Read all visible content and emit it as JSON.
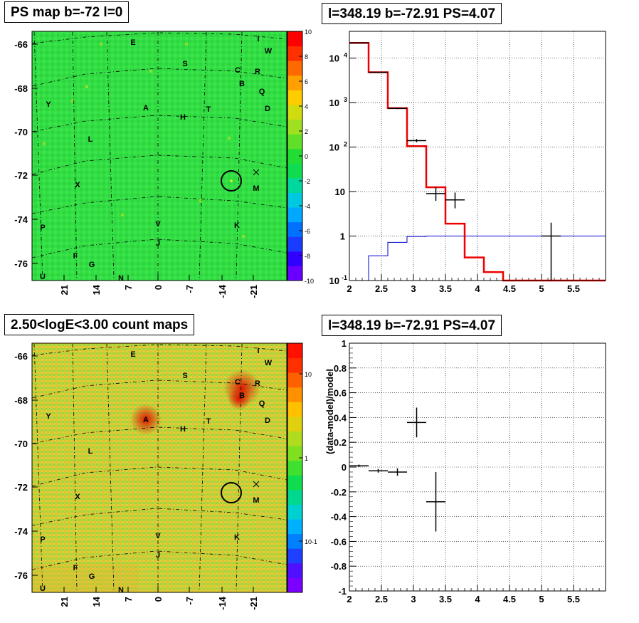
{
  "panels": {
    "ps_map": {
      "title": "PS map b=-72 l=0",
      "y_ticks": [
        "-66",
        "-68",
        "-70",
        "-72",
        "-74",
        "-76"
      ],
      "x_ticks": [
        "21",
        "14",
        "7",
        "0",
        "-7",
        "-14",
        "-21"
      ],
      "colorbar_ticks": [
        "10",
        "8",
        "6",
        "4",
        "2",
        "0",
        "-2",
        "-4",
        "-6",
        "-8",
        "-10"
      ],
      "markers": [
        "E",
        "S",
        "C",
        "R",
        "B",
        "Q",
        "D",
        "I",
        "W",
        "Y",
        "A",
        "H",
        "T",
        "L",
        "X",
        "M",
        "P",
        "V",
        "K",
        "J",
        "F",
        "G",
        "U",
        "N"
      ],
      "colors": {
        "background": "#33dd44",
        "hot": "#ff2200",
        "grid": "#000000"
      }
    },
    "count_map": {
      "title": "2.50<logE<3.00 count maps",
      "y_ticks": [
        "-66",
        "-68",
        "-70",
        "-72",
        "-74",
        "-76"
      ],
      "x_ticks": [
        "21",
        "14",
        "7",
        "0",
        "-7",
        "-14",
        "-21"
      ],
      "colorbar_ticks": [
        "10",
        "1",
        "10-1"
      ],
      "markers": [
        "E",
        "S",
        "C",
        "R",
        "B",
        "Q",
        "D",
        "I",
        "W",
        "Y",
        "A",
        "H",
        "T",
        "L",
        "X",
        "M",
        "P",
        "V",
        "K",
        "J",
        "F",
        "G",
        "U",
        "N"
      ],
      "colors": {
        "background": "#c8d040",
        "hot": "#dd2000"
      }
    },
    "spectrum": {
      "title": "l=348.19 b=-72.91 PS=4.07"
    },
    "residual": {
      "title": "l=348.19 b=-72.91 PS=4.07"
    }
  },
  "chart_data": [
    {
      "type": "heatmap",
      "title": "PS map b=-72 l=0",
      "ylabel_ticks": [
        -66,
        -68,
        -70,
        -72,
        -74,
        -76
      ],
      "xlabel_ticks": [
        21,
        14,
        7,
        0,
        -7,
        -14,
        -21
      ],
      "zlim": [
        -10,
        10
      ],
      "candidate_circle": {
        "l": -14,
        "b": -72.3
      }
    },
    {
      "type": "heatmap",
      "title": "2.50<logE<3.00 count maps",
      "zscale": "log",
      "zticks": [
        0.1,
        1,
        10
      ]
    },
    {
      "type": "line",
      "title": "l=348.19 b=-72.91 PS=4.07",
      "yscale": "log",
      "xlim": [
        2,
        6
      ],
      "ylim": [
        0.1,
        40000
      ],
      "xticks": [
        "2",
        "2.5",
        "3",
        "3.5",
        "4",
        "4.5",
        "5",
        "5.5"
      ],
      "yticks": [
        "10^{-1}",
        "1",
        "10",
        "10^{2}",
        "10^{3}",
        "10^{4}"
      ],
      "model_red": {
        "edges": [
          2.0,
          2.3,
          2.6,
          2.9,
          3.2,
          3.5,
          3.8,
          4.1,
          4.4,
          6.0
        ],
        "values": [
          22000,
          4800,
          750,
          105,
          12.5,
          1.9,
          0.33,
          0.155,
          0.1
        ]
      },
      "model_blue": {
        "edges": [
          2.0,
          2.3,
          2.6,
          2.9,
          3.2,
          6.0
        ],
        "values": [
          0.08,
          0.36,
          0.72,
          0.98,
          1.0
        ]
      },
      "data_points": [
        {
          "x": 2.15,
          "y": 22000,
          "xerr": 0.15,
          "ylo": 21800,
          "yhi": 22200
        },
        {
          "x": 2.45,
          "y": 4800,
          "xerr": 0.15,
          "ylo": 4730,
          "yhi": 4870
        },
        {
          "x": 2.75,
          "y": 740,
          "xerr": 0.15,
          "ylo": 713,
          "yhi": 767
        },
        {
          "x": 3.05,
          "y": 140,
          "xerr": 0.15,
          "ylo": 128,
          "yhi": 152
        },
        {
          "x": 3.35,
          "y": 9,
          "xerr": 0.15,
          "ylo": 6.2,
          "yhi": 12.5
        },
        {
          "x": 3.65,
          "y": 6.5,
          "xerr": 0.15,
          "ylo": 4.2,
          "yhi": 9.5
        },
        {
          "x": 5.15,
          "y": 1.0,
          "xerr": 0.15,
          "ylo": 0.1,
          "yhi": 2.0
        }
      ]
    },
    {
      "type": "scatter",
      "title": "l=348.19 b=-72.91 PS=4.07",
      "ylabel": "(data-model)/model",
      "xlim": [
        2,
        6
      ],
      "ylim": [
        -1,
        1
      ],
      "xticks": [
        "2",
        "2.5",
        "3",
        "3.5",
        "4",
        "4.5",
        "5",
        "5.5"
      ],
      "yticks": [
        "1",
        "0.8",
        "0.6",
        "0.4",
        "0.2",
        "0",
        "-0.2",
        "-0.4",
        "-0.6",
        "-0.8",
        "-1"
      ],
      "points": [
        {
          "x": 2.15,
          "y": 0.01,
          "xerr": 0.15,
          "yerr": 0.01
        },
        {
          "x": 2.45,
          "y": -0.03,
          "xerr": 0.15,
          "yerr": 0.015
        },
        {
          "x": 2.75,
          "y": -0.04,
          "xerr": 0.15,
          "yerr": 0.03
        },
        {
          "x": 3.05,
          "y": 0.36,
          "xerr": 0.15,
          "yerr": 0.12
        },
        {
          "x": 3.35,
          "y": -0.28,
          "xerr": 0.15,
          "yerr": 0.24
        }
      ]
    }
  ]
}
